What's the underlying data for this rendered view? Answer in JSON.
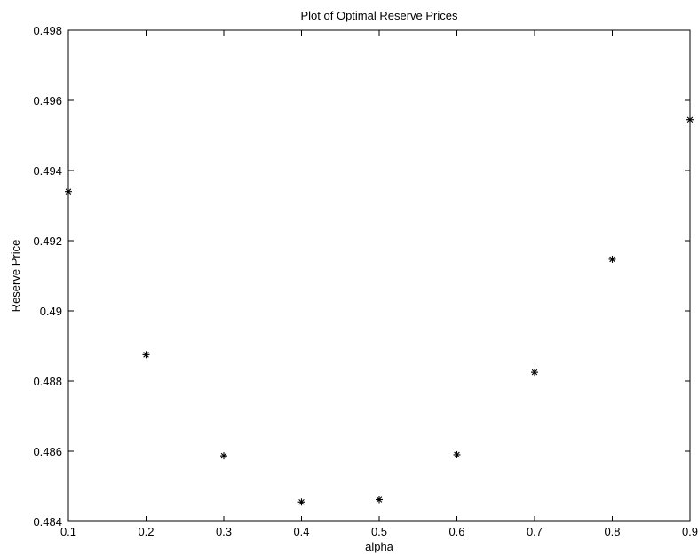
{
  "chart_data": {
    "type": "scatter",
    "title": "Plot of Optimal Reserve Prices",
    "xlabel": "alpha",
    "ylabel": "Reserve Price",
    "xlim": [
      0.1,
      0.9
    ],
    "ylim": [
      0.484,
      0.498
    ],
    "xticks": [
      0.1,
      0.2,
      0.3,
      0.4,
      0.5,
      0.6,
      0.7,
      0.8,
      0.9
    ],
    "xtick_labels": [
      "0.1",
      "0.2",
      "0.3",
      "0.4",
      "0.5",
      "0.6",
      "0.7",
      "0.8",
      "0.9"
    ],
    "yticks": [
      0.484,
      0.486,
      0.488,
      0.49,
      0.492,
      0.494,
      0.496,
      0.498
    ],
    "ytick_labels": [
      "0.484",
      "0.486",
      "0.488",
      "0.49",
      "0.492",
      "0.494",
      "0.496",
      "0.498"
    ],
    "grid": false,
    "marker": "asterisk",
    "marker_color": "#000000",
    "series": [
      {
        "x": [
          0.1,
          0.2,
          0.3,
          0.4,
          0.5,
          0.6,
          0.7,
          0.8,
          0.9
        ],
        "y": [
          0.4934,
          0.48875,
          0.48587,
          0.48455,
          0.48462,
          0.4859,
          0.48825,
          0.49147,
          0.49545
        ]
      }
    ]
  }
}
